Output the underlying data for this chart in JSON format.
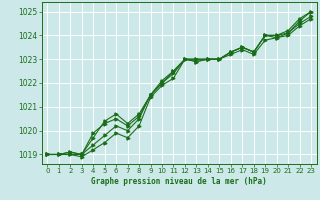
{
  "xlabel": "Graphe pression niveau de la mer (hPa)",
  "ylim": [
    1018.6,
    1025.4
  ],
  "xlim": [
    -0.5,
    23.5
  ],
  "yticks": [
    1019,
    1020,
    1021,
    1022,
    1023,
    1024,
    1025
  ],
  "xticks": [
    0,
    1,
    2,
    3,
    4,
    5,
    6,
    7,
    8,
    9,
    10,
    11,
    12,
    13,
    14,
    15,
    16,
    17,
    18,
    19,
    20,
    21,
    22,
    23
  ],
  "bg_color": "#cce8e8",
  "grid_color": "#ffffff",
  "line_color": "#1a6e1a",
  "lines": [
    [
      1019.0,
      1019.0,
      1019.0,
      1018.9,
      1019.2,
      1019.5,
      1019.9,
      1019.7,
      1020.2,
      1021.4,
      1021.9,
      1022.2,
      1023.0,
      1022.9,
      1023.0,
      1023.0,
      1023.3,
      1023.5,
      1023.3,
      1024.0,
      1024.0,
      1024.1,
      1024.6,
      1025.0
    ],
    [
      1019.0,
      1019.0,
      1019.0,
      1019.0,
      1019.4,
      1019.8,
      1020.2,
      1020.0,
      1020.5,
      1021.5,
      1022.0,
      1022.4,
      1023.0,
      1023.0,
      1023.0,
      1023.0,
      1023.3,
      1023.5,
      1023.3,
      1024.0,
      1024.0,
      1024.2,
      1024.7,
      1025.0
    ],
    [
      1019.0,
      1019.0,
      1019.1,
      1019.0,
      1019.9,
      1020.3,
      1020.5,
      1020.2,
      1020.6,
      1021.5,
      1022.0,
      1022.5,
      1023.0,
      1022.9,
      1023.0,
      1023.0,
      1023.2,
      1023.4,
      1023.2,
      1023.8,
      1023.9,
      1024.0,
      1024.4,
      1024.7
    ],
    [
      1019.0,
      1019.0,
      1019.1,
      1019.0,
      1019.7,
      1020.4,
      1020.7,
      1020.3,
      1020.7,
      1021.5,
      1022.1,
      1022.5,
      1023.0,
      1023.0,
      1023.0,
      1023.0,
      1023.3,
      1023.5,
      1023.3,
      1024.0,
      1023.9,
      1024.1,
      1024.5,
      1024.8
    ]
  ]
}
